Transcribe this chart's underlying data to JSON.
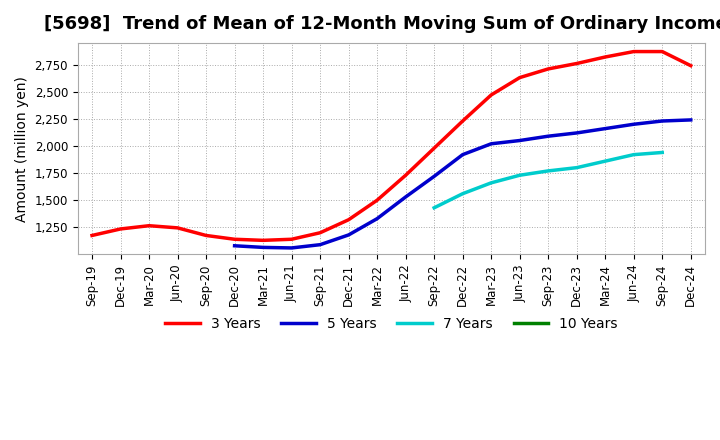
{
  "title": "[5698]  Trend of Mean of 12-Month Moving Sum of Ordinary Incomes",
  "ylabel": "Amount (million yen)",
  "background_color": "#ffffff",
  "grid_color": "#aaaaaa",
  "title_fontsize": 13,
  "axis_label_fontsize": 10,
  "tick_fontsize": 8.5,
  "legend_labels": [
    "3 Years",
    "5 Years",
    "7 Years",
    "10 Years"
  ],
  "legend_colors": [
    "#ff0000",
    "#0000cc",
    "#00cccc",
    "#008000"
  ],
  "ylim": [
    1000,
    2950
  ],
  "yticks": [
    1250,
    1500,
    1750,
    2000,
    2250,
    2500,
    2750
  ],
  "x_labels": [
    "Sep-19",
    "Dec-19",
    "Mar-20",
    "Jun-20",
    "Sep-20",
    "Dec-20",
    "Mar-21",
    "Jun-21",
    "Sep-21",
    "Dec-21",
    "Mar-22",
    "Jun-22",
    "Sep-22",
    "Dec-22",
    "Mar-23",
    "Jun-23",
    "Sep-23",
    "Dec-23",
    "Mar-24",
    "Jun-24",
    "Sep-24",
    "Dec-24"
  ],
  "series_3yr": [
    1175,
    1235,
    1265,
    1245,
    1175,
    1140,
    1130,
    1140,
    1200,
    1320,
    1500,
    1730,
    1980,
    2230,
    2470,
    2630,
    2710,
    2760,
    2820,
    2870,
    2870,
    2740
  ],
  "series_5yr": [
    null,
    null,
    null,
    null,
    null,
    1080,
    1065,
    1060,
    1090,
    1180,
    1330,
    1530,
    1720,
    1920,
    2020,
    2050,
    2090,
    2120,
    2160,
    2200,
    2230,
    2240
  ],
  "series_7yr": [
    null,
    null,
    null,
    null,
    null,
    null,
    null,
    null,
    null,
    null,
    null,
    null,
    1430,
    1560,
    1660,
    1730,
    1770,
    1800,
    1860,
    1920,
    1940,
    null
  ],
  "series_10yr": [
    null,
    null,
    null,
    null,
    null,
    null,
    null,
    null,
    null,
    null,
    null,
    null,
    null,
    null,
    null,
    null,
    null,
    null,
    null,
    null,
    null,
    null
  ]
}
